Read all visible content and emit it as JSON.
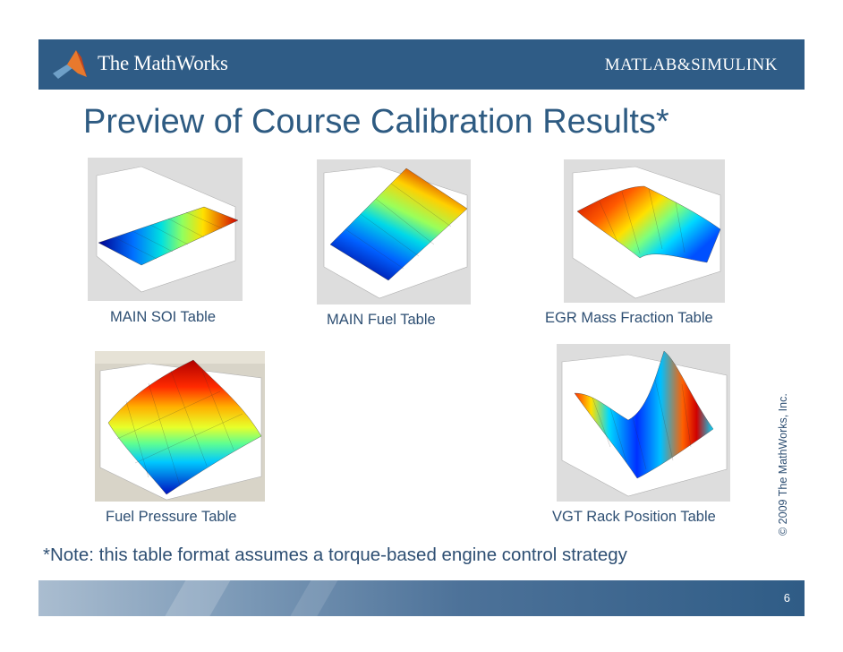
{
  "header": {
    "brand": "The MathWorks",
    "product": "MATLAB&SIMULINK"
  },
  "slide": {
    "title": "Preview of Course Calibration Results*",
    "figures": [
      {
        "caption": "MAIN SOI Table",
        "icon": "surface-plot"
      },
      {
        "caption": "MAIN Fuel Table",
        "icon": "surface-plot"
      },
      {
        "caption": "EGR Mass Fraction Table",
        "icon": "surface-plot"
      },
      {
        "caption": "Fuel Pressure Table",
        "icon": "surface-plot"
      },
      {
        "caption": "VGT Rack Position Table",
        "icon": "surface-plot"
      }
    ],
    "note": "*Note:  this table format assumes a torque-based engine control strategy",
    "copyright": "© 2009 The MathWorks, Inc.",
    "page_number": "6"
  },
  "colors": {
    "header_bg": "#2f5c86",
    "title": "#2e5b82",
    "caption": "#2e4f73"
  }
}
